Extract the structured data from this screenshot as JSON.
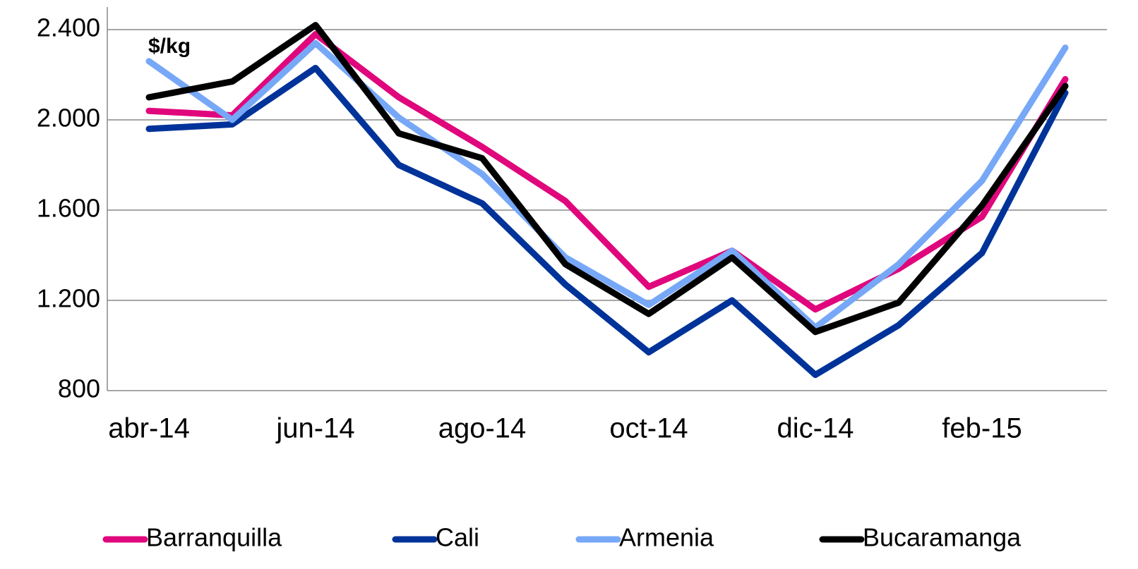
{
  "chart_data": {
    "type": "line",
    "annotation": "$/kg",
    "categories": [
      "abr-14",
      null,
      "jun-14",
      null,
      "ago-14",
      null,
      "oct-14",
      null,
      "dic-14",
      null,
      "feb-15",
      null
    ],
    "series": [
      {
        "name": "Barranquilla",
        "color": "#e0077d",
        "values": [
          2040,
          2020,
          2380,
          2100,
          1880,
          1640,
          1260,
          1420,
          1160,
          1340,
          1570,
          2180
        ]
      },
      {
        "name": "Cali",
        "color": "#003399",
        "values": [
          1960,
          1980,
          2230,
          1800,
          1630,
          1270,
          970,
          1200,
          870,
          1090,
          1410,
          2120
        ]
      },
      {
        "name": "Armenia",
        "color": "#77a8f7",
        "values": [
          2260,
          2000,
          2340,
          2010,
          1760,
          1390,
          1180,
          1420,
          1080,
          1360,
          1730,
          2320
        ]
      },
      {
        "name": "Bucaramanga",
        "color": "#000000",
        "values": [
          2100,
          2170,
          2420,
          1940,
          1830,
          1360,
          1140,
          1390,
          1060,
          1190,
          1620,
          2150
        ]
      }
    ],
    "ylim": [
      800,
      2500
    ],
    "yticks": [
      800,
      {
        "value": 1200,
        "label": "1.200"
      },
      {
        "value": 1600,
        "label": "1.600"
      },
      {
        "value": 2000,
        "label": "2.000"
      },
      {
        "value": 2400,
        "label": "2.400"
      }
    ],
    "grid": true
  }
}
